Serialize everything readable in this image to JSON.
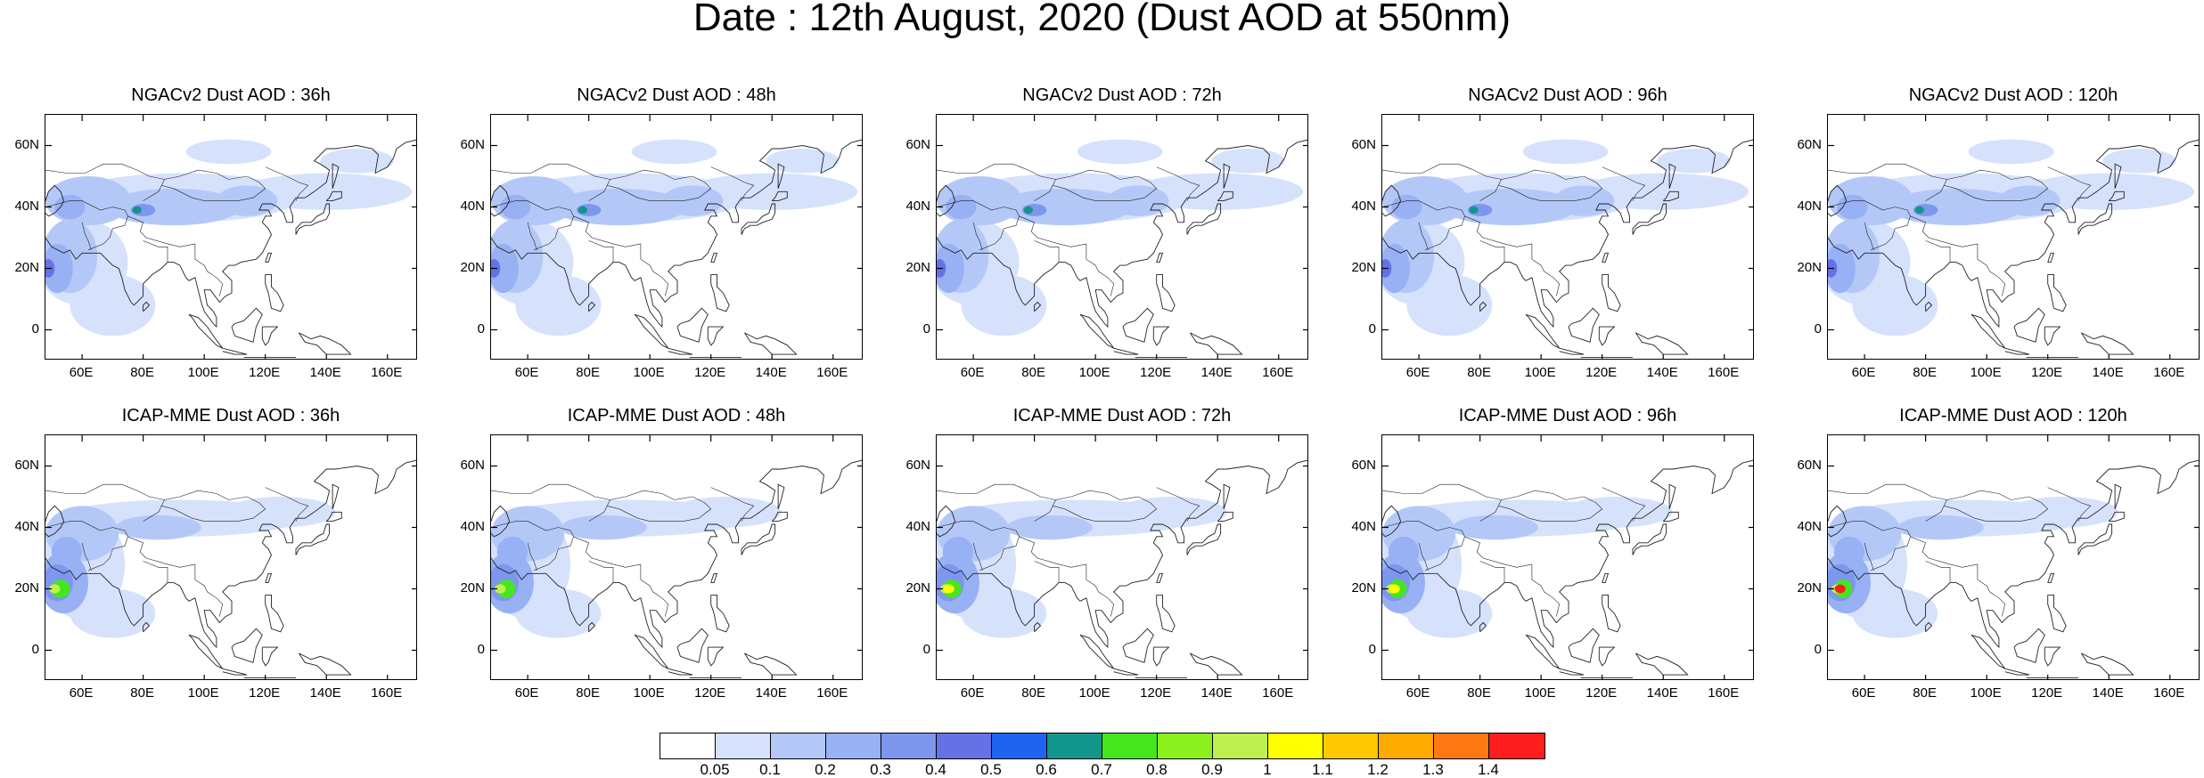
{
  "page": {
    "title": "Date : 12th August, 2020 (Dust AOD at 550nm)"
  },
  "axes": {
    "y_ticks": [
      "60N",
      "40N",
      "20N",
      "0"
    ],
    "x_ticks": [
      "60E",
      "80E",
      "100E",
      "120E",
      "140E",
      "160E"
    ]
  },
  "map_extent": {
    "lon": [
      48,
      170
    ],
    "lat": [
      -10,
      70
    ]
  },
  "panels": [
    {
      "title": "NGACv2 Dust AOD : 36h",
      "model": "NGACv2",
      "lead": "36h"
    },
    {
      "title": "NGACv2 Dust AOD : 48h",
      "model": "NGACv2",
      "lead": "48h"
    },
    {
      "title": "NGACv2 Dust AOD : 72h",
      "model": "NGACv2",
      "lead": "72h"
    },
    {
      "title": "NGACv2 Dust AOD : 96h",
      "model": "NGACv2",
      "lead": "96h"
    },
    {
      "title": "NGACv2 Dust AOD : 120h",
      "model": "NGACv2",
      "lead": "120h"
    },
    {
      "title": "ICAP-MME Dust AOD : 36h",
      "model": "ICAP-MME",
      "lead": "36h"
    },
    {
      "title": "ICAP-MME Dust AOD : 48h",
      "model": "ICAP-MME",
      "lead": "48h"
    },
    {
      "title": "ICAP-MME Dust AOD : 72h",
      "model": "ICAP-MME",
      "lead": "72h"
    },
    {
      "title": "ICAP-MME Dust AOD : 96h",
      "model": "ICAP-MME",
      "lead": "96h"
    },
    {
      "title": "ICAP-MME Dust AOD : 120h",
      "model": "ICAP-MME",
      "lead": "120h"
    }
  ],
  "colorbar": {
    "labels": [
      "0.05",
      "0.1",
      "0.2",
      "0.3",
      "0.4",
      "0.5",
      "0.6",
      "0.7",
      "0.8",
      "0.9",
      "1",
      "1.1",
      "1.2",
      "1.3",
      "1.4"
    ],
    "colors": [
      "#ffffff",
      "#d6e2fc",
      "#b4c8f8",
      "#98b0f4",
      "#7d96ee",
      "#6472e6",
      "#1e64f0",
      "#12968c",
      "#46e61e",
      "#8cf01e",
      "#bef050",
      "#ffff00",
      "#ffc800",
      "#ffaa00",
      "#ff7814",
      "#ff1e1e"
    ]
  }
}
